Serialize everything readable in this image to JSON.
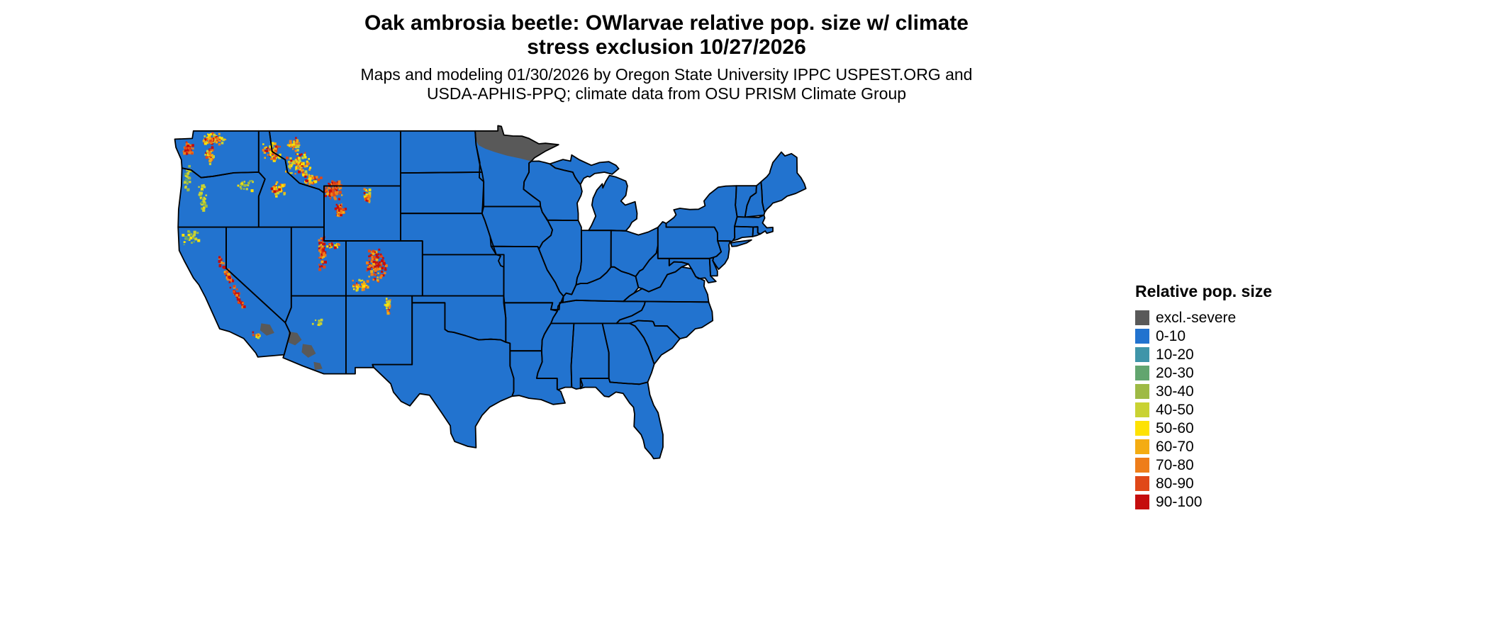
{
  "title": {
    "line1": "Oak ambrosia beetle: OWlarvae relative pop. size w/ climate",
    "line2": "stress exclusion 10/27/2026"
  },
  "subtitle": {
    "line1": "Maps and modeling 01/30/2026 by Oregon State University IPPC USPEST.ORG and",
    "line2": "USDA-APHIS-PPQ; climate data from OSU PRISM Climate Group"
  },
  "legend": {
    "title": "Relative pop. size",
    "items": [
      {
        "label": "excl.-severe",
        "color": "#595959"
      },
      {
        "label": "0-10",
        "color": "#2273cf"
      },
      {
        "label": "10-20",
        "color": "#3f95a9"
      },
      {
        "label": "20-30",
        "color": "#62a56f"
      },
      {
        "label": "30-40",
        "color": "#9eba45"
      },
      {
        "label": "40-50",
        "color": "#c9d233"
      },
      {
        "label": "50-60",
        "color": "#fee203"
      },
      {
        "label": "60-70",
        "color": "#f4ac12"
      },
      {
        "label": "70-80",
        "color": "#ee7d1a"
      },
      {
        "label": "80-90",
        "color": "#e04818"
      },
      {
        "label": "90-100",
        "color": "#c50d0d"
      }
    ]
  },
  "map": {
    "base_fill": "#2273cf",
    "exclusion_fill": "#595959",
    "border_color": "#000000"
  }
}
